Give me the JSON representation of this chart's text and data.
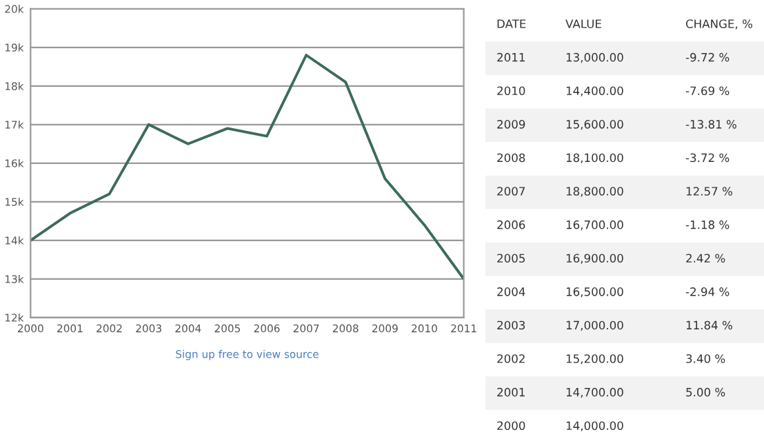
{
  "chart_data": {
    "type": "line",
    "x": [
      2000,
      2001,
      2002,
      2003,
      2004,
      2005,
      2006,
      2007,
      2008,
      2009,
      2010,
      2011
    ],
    "series": [
      {
        "color": "#3d6b5a",
        "values": [
          14000,
          14700,
          15200,
          17000,
          16500,
          16900,
          16700,
          18800,
          18100,
          15600,
          14400,
          13000
        ]
      }
    ],
    "xlim": [
      2000,
      2011
    ],
    "xticks": [
      2000,
      2001,
      2002,
      2003,
      2004,
      2005,
      2006,
      2007,
      2008,
      2009,
      2010,
      2011
    ],
    "ylim": [
      12000,
      20000
    ],
    "yticks": [
      {
        "value": 12000,
        "label": "12k"
      },
      {
        "value": 13000,
        "label": "13k"
      },
      {
        "value": 14000,
        "label": "14k"
      },
      {
        "value": 15000,
        "label": "15k"
      },
      {
        "value": 16000,
        "label": "16k"
      },
      {
        "value": 17000,
        "label": "17k"
      },
      {
        "value": 18000,
        "label": "18k"
      },
      {
        "value": 19000,
        "label": "19k"
      },
      {
        "value": 20000,
        "label": "20k"
      }
    ],
    "grid": "y",
    "marker": "none",
    "line_style": "solid",
    "legend": false,
    "annotations": [
      "Sign up free to view source",
      "DATE",
      "VALUE",
      "CHANGE, %",
      "2011",
      "13,000.00",
      "-9.72 %",
      "2010",
      "14,400.00",
      "-7.69 %",
      "2009",
      "15,600.00",
      "-13.81 %",
      "2008",
      "18,100.00",
      "-3.72 %",
      "2007",
      "18,800.00",
      "12.57 %",
      "2006",
      "16,700.00",
      "-1.18 %",
      "2005",
      "16,900.00",
      "2.42 %",
      "2004",
      "16,500.00",
      "-2.94 %",
      "2003",
      "17,000.00",
      "11.84 %",
      "2002",
      "15,200.00",
      "3.40 %",
      "2001",
      "14,700.00",
      "5.00 %",
      "2000",
      "14,000.00"
    ]
  }
}
